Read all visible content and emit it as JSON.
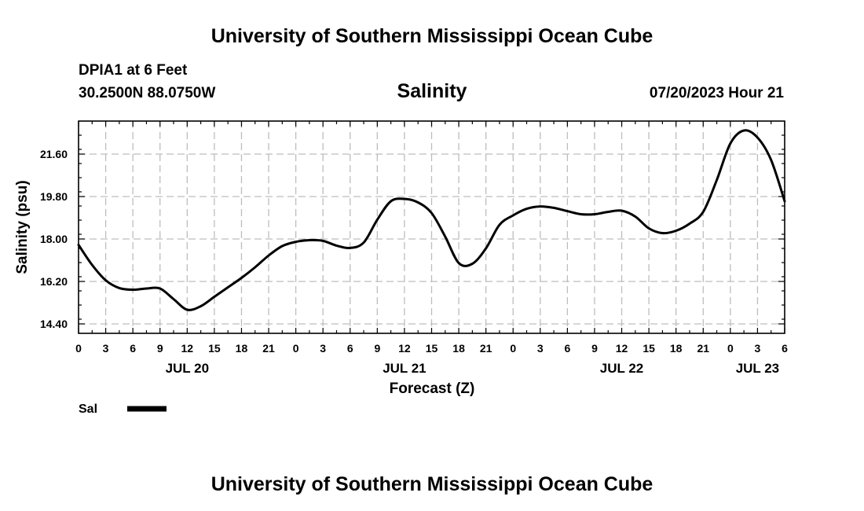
{
  "header": {
    "title": "University of Southern Mississippi Ocean Cube",
    "station": "DPIA1 at 6 Feet",
    "coords": "30.2500N  88.0750W",
    "variable": "Salinity",
    "datetime": "07/20/2023 Hour 21"
  },
  "footer": {
    "title": "University of Southern Mississippi Ocean Cube"
  },
  "legend": {
    "label": "Sal"
  },
  "chart_data": {
    "type": "line",
    "title": "Salinity",
    "xlabel": "Forecast (Z)",
    "ylabel": "Salinity (psu)",
    "xlim": [
      0,
      78
    ],
    "ylim": [
      14.0,
      23.0
    ],
    "yticks": [
      14.4,
      16.2,
      18.0,
      19.8,
      21.6
    ],
    "ytick_labels": [
      "14.40",
      "16.20",
      "18.00",
      "19.80",
      "21.60"
    ],
    "x_ticks": [
      0,
      3,
      6,
      9,
      12,
      15,
      18,
      21,
      24,
      27,
      30,
      33,
      36,
      39,
      42,
      45,
      48,
      51,
      54,
      57,
      60,
      63,
      66,
      69,
      72,
      75,
      78
    ],
    "xtick_labels": [
      "0",
      "3",
      "6",
      "9",
      "12",
      "15",
      "18",
      "21",
      "0",
      "3",
      "6",
      "9",
      "12",
      "15",
      "18",
      "21",
      "0",
      "3",
      "6",
      "9",
      "12",
      "15",
      "18",
      "21",
      "0",
      "3",
      "6"
    ],
    "day_labels": [
      {
        "label": "JUL 20",
        "x": 12
      },
      {
        "label": "JUL 21",
        "x": 36
      },
      {
        "label": "JUL 22",
        "x": 60
      },
      {
        "label": "JUL 23",
        "x": 75
      }
    ],
    "grid": true,
    "legend_position": "bottom-left",
    "series": [
      {
        "name": "Sal",
        "x": [
          0,
          1.5,
          3,
          4.5,
          6,
          7.5,
          9,
          10.5,
          12,
          13.5,
          15,
          16.5,
          18,
          19.5,
          21,
          22.5,
          24,
          25.5,
          27,
          28.5,
          30,
          31.5,
          33,
          34.5,
          36,
          37.5,
          39,
          40.5,
          42,
          43.5,
          45,
          46.5,
          48,
          49.5,
          51,
          52.5,
          54,
          55.5,
          57,
          58.5,
          60,
          61.5,
          63,
          64.5,
          66,
          67.5,
          69,
          70.5,
          72,
          73.5,
          75,
          76.5,
          78
        ],
        "y": [
          17.75,
          16.9,
          16.25,
          15.92,
          15.85,
          15.9,
          15.9,
          15.45,
          15.0,
          15.15,
          15.55,
          15.95,
          16.35,
          16.8,
          17.3,
          17.7,
          17.88,
          17.95,
          17.92,
          17.72,
          17.62,
          17.85,
          18.82,
          19.6,
          19.7,
          19.55,
          19.1,
          18.1,
          16.98,
          16.95,
          17.6,
          18.6,
          19.0,
          19.28,
          19.38,
          19.32,
          19.18,
          19.05,
          19.05,
          19.15,
          19.2,
          18.95,
          18.45,
          18.25,
          18.35,
          18.65,
          19.15,
          20.5,
          22.05,
          22.6,
          22.3,
          21.35,
          19.6
        ]
      }
    ]
  }
}
